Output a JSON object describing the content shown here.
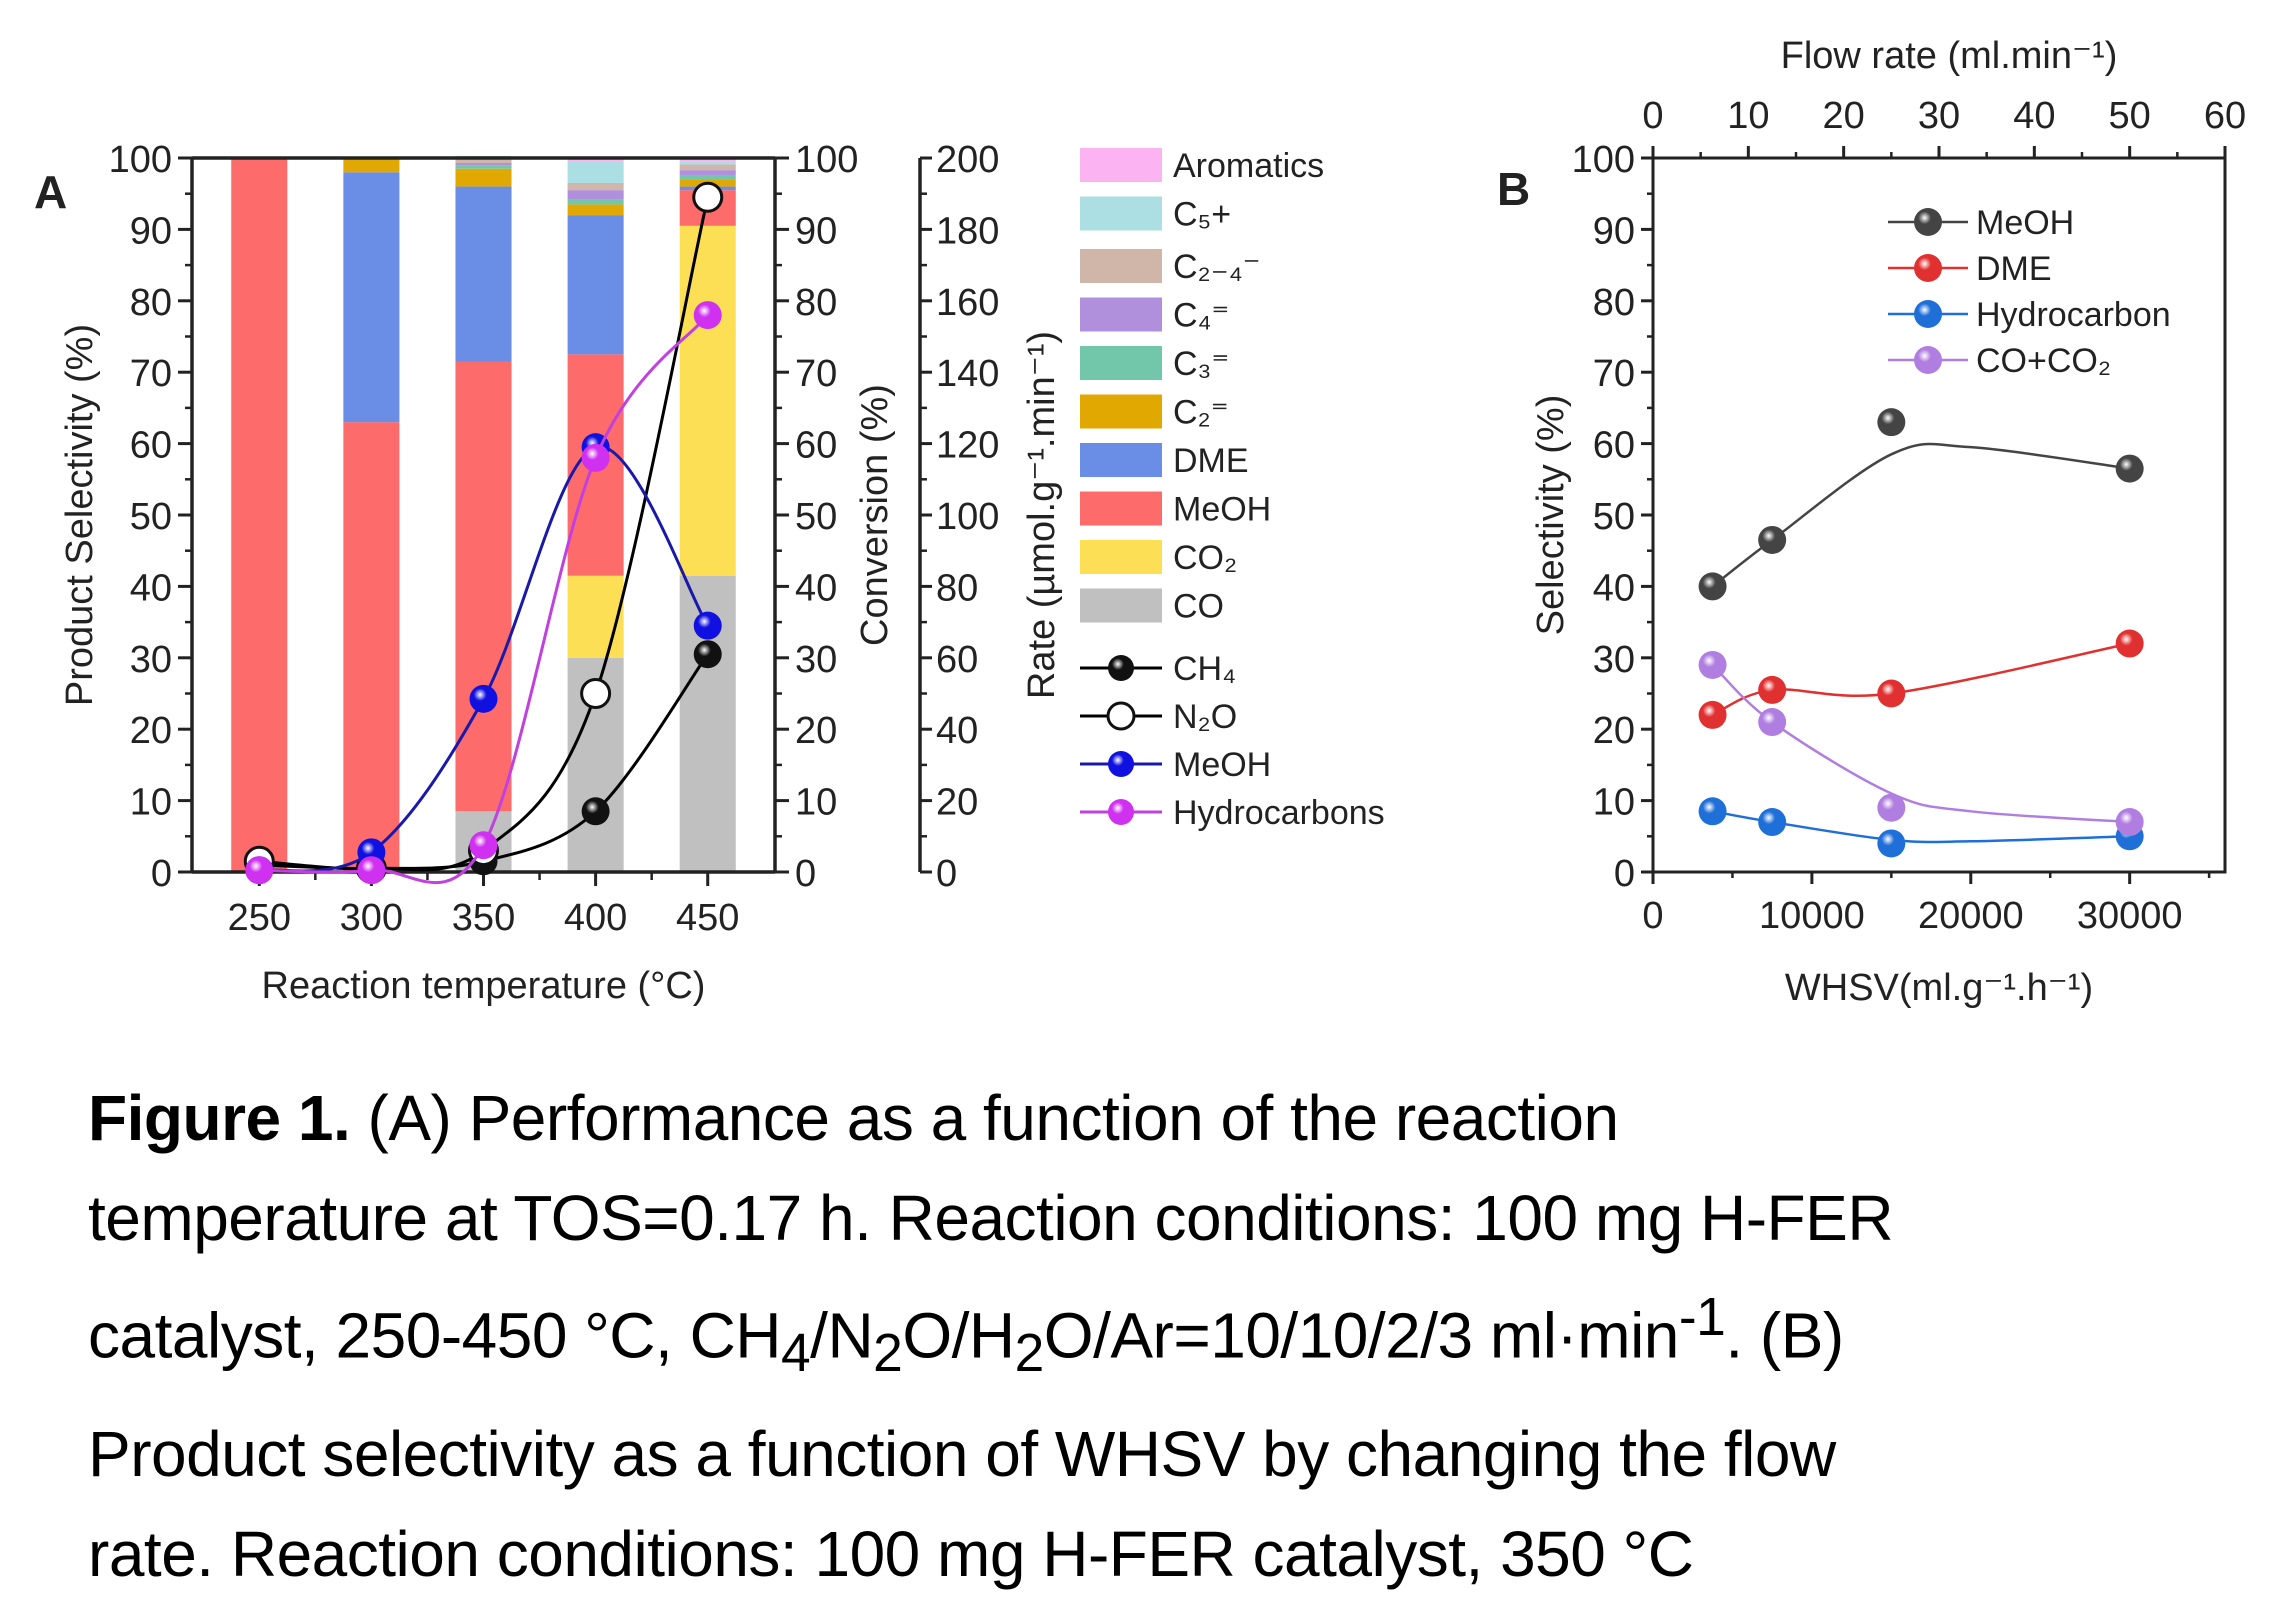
{
  "chart_data": [
    {
      "panel": "A",
      "type": "bar",
      "stacked": true,
      "title": "",
      "panel_label": "A",
      "xlabel": "Reaction temperature (°C)",
      "ylabel": "Product Selectivity (%)",
      "y2label": "Conversion (%)",
      "y3label": "Rate (µmol.g⁻¹.min⁻¹)",
      "categories": [
        "250",
        "300",
        "350",
        "400",
        "450"
      ],
      "ylim": [
        0,
        100
      ],
      "y2lim": [
        0,
        100
      ],
      "y3lim": [
        0,
        200
      ],
      "yticks": [
        0,
        10,
        20,
        30,
        40,
        50,
        60,
        70,
        80,
        90,
        100
      ],
      "y2ticks": [
        0,
        10,
        20,
        30,
        40,
        50,
        60,
        70,
        80,
        90,
        100
      ],
      "y3ticks": [
        0,
        20,
        40,
        60,
        80,
        100,
        120,
        140,
        160,
        180,
        200
      ],
      "series": [
        {
          "name": "CO",
          "color": "#c0c0c0",
          "values": [
            0,
            0,
            8.5,
            30,
            41.5
          ]
        },
        {
          "name": "CO₂",
          "color": "#fddf55",
          "values": [
            0,
            0,
            0,
            11.5,
            49
          ]
        },
        {
          "name": "MeOH",
          "color": "#fe6b6b",
          "values": [
            100,
            63,
            63,
            31,
            5
          ]
        },
        {
          "name": "DME",
          "color": "#6a8ee6",
          "values": [
            0,
            35,
            24.5,
            19.5,
            0.5
          ]
        },
        {
          "name": "C₂⁼",
          "color": "#e0a800",
          "values": [
            0,
            2,
            2.5,
            1.5,
            1
          ]
        },
        {
          "name": "C₃⁼",
          "color": "#72c6a9",
          "values": [
            0,
            0,
            0.5,
            0.7,
            0.5
          ]
        },
        {
          "name": "C₄⁼",
          "color": "#b08fdc",
          "values": [
            0,
            0,
            0.3,
            1.3,
            0.8
          ]
        },
        {
          "name": "C₂₋₄⁻",
          "color": "#d0b6a8",
          "values": [
            0,
            0,
            0.5,
            1,
            0.8
          ]
        },
        {
          "name": "C₅+",
          "color": "#abdfe3",
          "values": [
            0,
            0,
            0.5,
            3,
            0.4
          ]
        },
        {
          "name": "Aromatics",
          "color": "#fbb4f1",
          "values": [
            0,
            0,
            0,
            0.5,
            0.5
          ]
        }
      ],
      "line_series": [
        {
          "name": "CH₄",
          "axis": "conversion",
          "color": "#000000",
          "marker": "filled-black",
          "values": [
            1,
            0.5,
            1.5,
            8.5,
            30.5
          ]
        },
        {
          "name": "N₂O",
          "axis": "conversion",
          "color": "#000000",
          "marker": "open-white",
          "values": [
            1.5,
            0.5,
            3,
            25,
            94.5
          ]
        },
        {
          "name": "MeOH",
          "axis": "rate",
          "color": "#1a1aaa",
          "marker": "filled-blue",
          "values": [
            0.5,
            5.5,
            48.5,
            119,
            69
          ]
        },
        {
          "name": "Hydrocarbons",
          "axis": "rate",
          "color": "#c040e0",
          "marker": "filled-magenta",
          "values": [
            0.5,
            0.5,
            7.5,
            116,
            156
          ]
        }
      ],
      "legend_position": "right"
    },
    {
      "panel": "B",
      "type": "scatter",
      "title": "",
      "panel_label": "B",
      "xlabel": "WHSV(ml.g⁻¹.h⁻¹)",
      "x2label": "Flow rate (ml.min⁻¹)",
      "ylabel": "Selectivity (%)",
      "xlim": [
        0,
        36000
      ],
      "x2lim": [
        0,
        60
      ],
      "ylim": [
        0,
        100
      ],
      "xticks": [
        0,
        10000,
        20000,
        30000
      ],
      "x2ticks": [
        0,
        10,
        20,
        30,
        40,
        50,
        60
      ],
      "yticks": [
        0,
        10,
        20,
        30,
        40,
        50,
        60,
        70,
        80,
        90,
        100
      ],
      "x": [
        3750,
        7500,
        15000,
        30000
      ],
      "series": [
        {
          "name": "MeOH",
          "color": "#444444",
          "values": [
            40,
            46.5,
            63,
            56.5
          ]
        },
        {
          "name": "DME",
          "color": "#e03030",
          "values": [
            22,
            25.5,
            25,
            32
          ]
        },
        {
          "name": "Hydrocarbon",
          "color": "#1f6fd8",
          "values": [
            8.5,
            7,
            4,
            5
          ]
        },
        {
          "name": "CO+CO₂",
          "color": "#b07ee0",
          "values": [
            29,
            21,
            9,
            7
          ]
        }
      ],
      "legend_position": "top-right"
    }
  ],
  "caption": {
    "label": "Figure 1.",
    "line1": " (A) Performance as a function of the reaction",
    "line2": "temperature at TOS=0.17 h. Reaction conditions: 100 mg H-FER",
    "line3a": "catalyst, 250-450 °C, CH",
    "sub4": "4",
    "line3b": "/N",
    "sub2a": "2",
    "line3c": "O/H",
    "sub2b": "2",
    "line3d": "O/Ar=10/10/2/3 ml·min",
    "sup": "-1",
    "line3e": ". (B)",
    "line4": "Product selectivity as a function of WHSV by changing the flow",
    "line5": "rate. Reaction conditions: 100 mg H-FER catalyst, 350 °C"
  }
}
